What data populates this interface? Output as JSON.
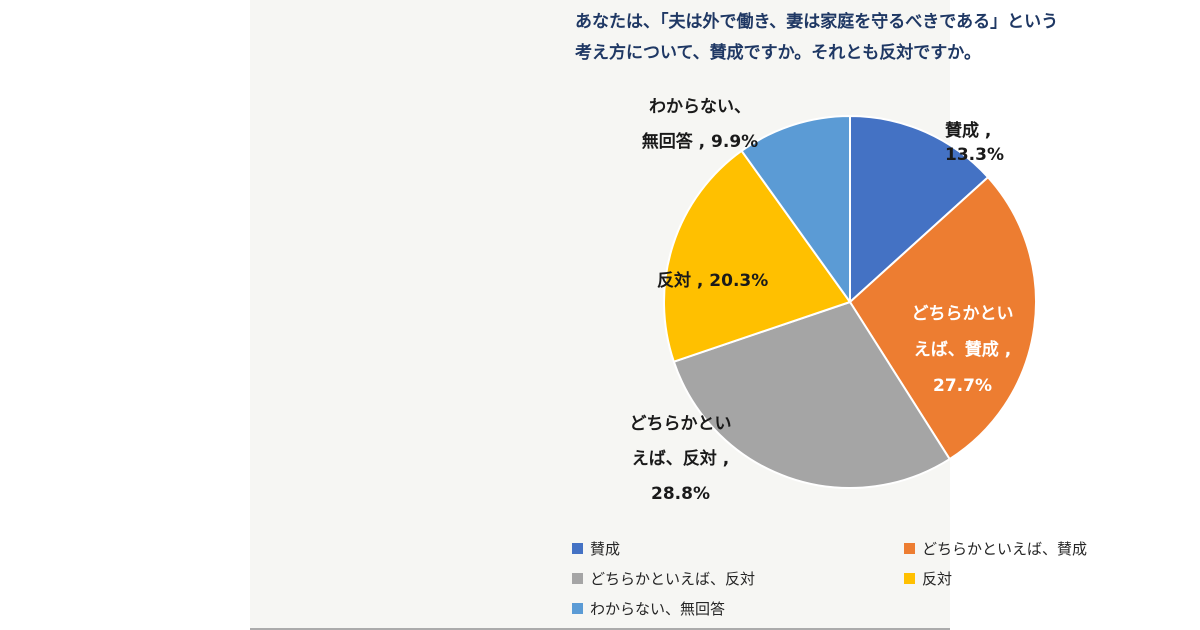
{
  "chart": {
    "title_line1": "あなたは、「夫は外で働き、妻は家庭を守るべきである」という",
    "title_line2": "考え方について、賛成ですか。それとも反対ですか。",
    "title_color": "#1F3864",
    "panel_background": "#F6F6F3"
  },
  "chart_data": {
    "type": "pie",
    "title": "あなたは、「夫は外で働き、妻は家庭を守るべきである」という考え方について、賛成ですか。それとも反対ですか。",
    "categories": [
      "賛成",
      "どちらかといえば、賛成",
      "どちらかといえば、反対",
      "反対",
      "わからない、無回答"
    ],
    "values": [
      13.3,
      27.7,
      28.8,
      20.3,
      9.9
    ],
    "unit": "%",
    "colors": [
      "#4472C4",
      "#ED7D31",
      "#A5A5A5",
      "#FFC000",
      "#5B9BD5"
    ],
    "start_angle_deg": 0,
    "direction": "clockwise",
    "legend_position": "bottom",
    "labels": [
      {
        "category": "賛成",
        "text": "賛成 , 13.3%",
        "placement": "outside",
        "color": "#1a1a1a"
      },
      {
        "category": "どちらかといえば、賛成",
        "text": "どちらかとい\nえば、賛成 ,\n27.7%",
        "placement": "inside",
        "color": "#ffffff"
      },
      {
        "category": "どちらかといえば、反対",
        "text": "どちらかとい\nえば、反対 ,\n28.8%",
        "placement": "outside",
        "color": "#1a1a1a"
      },
      {
        "category": "反対",
        "text": "反対 , 20.3%",
        "placement": "outside",
        "color": "#1a1a1a"
      },
      {
        "category": "わからない、無回答",
        "text": "わからない、\n無回答 , 9.9%",
        "placement": "outside",
        "color": "#1a1a1a"
      }
    ]
  }
}
